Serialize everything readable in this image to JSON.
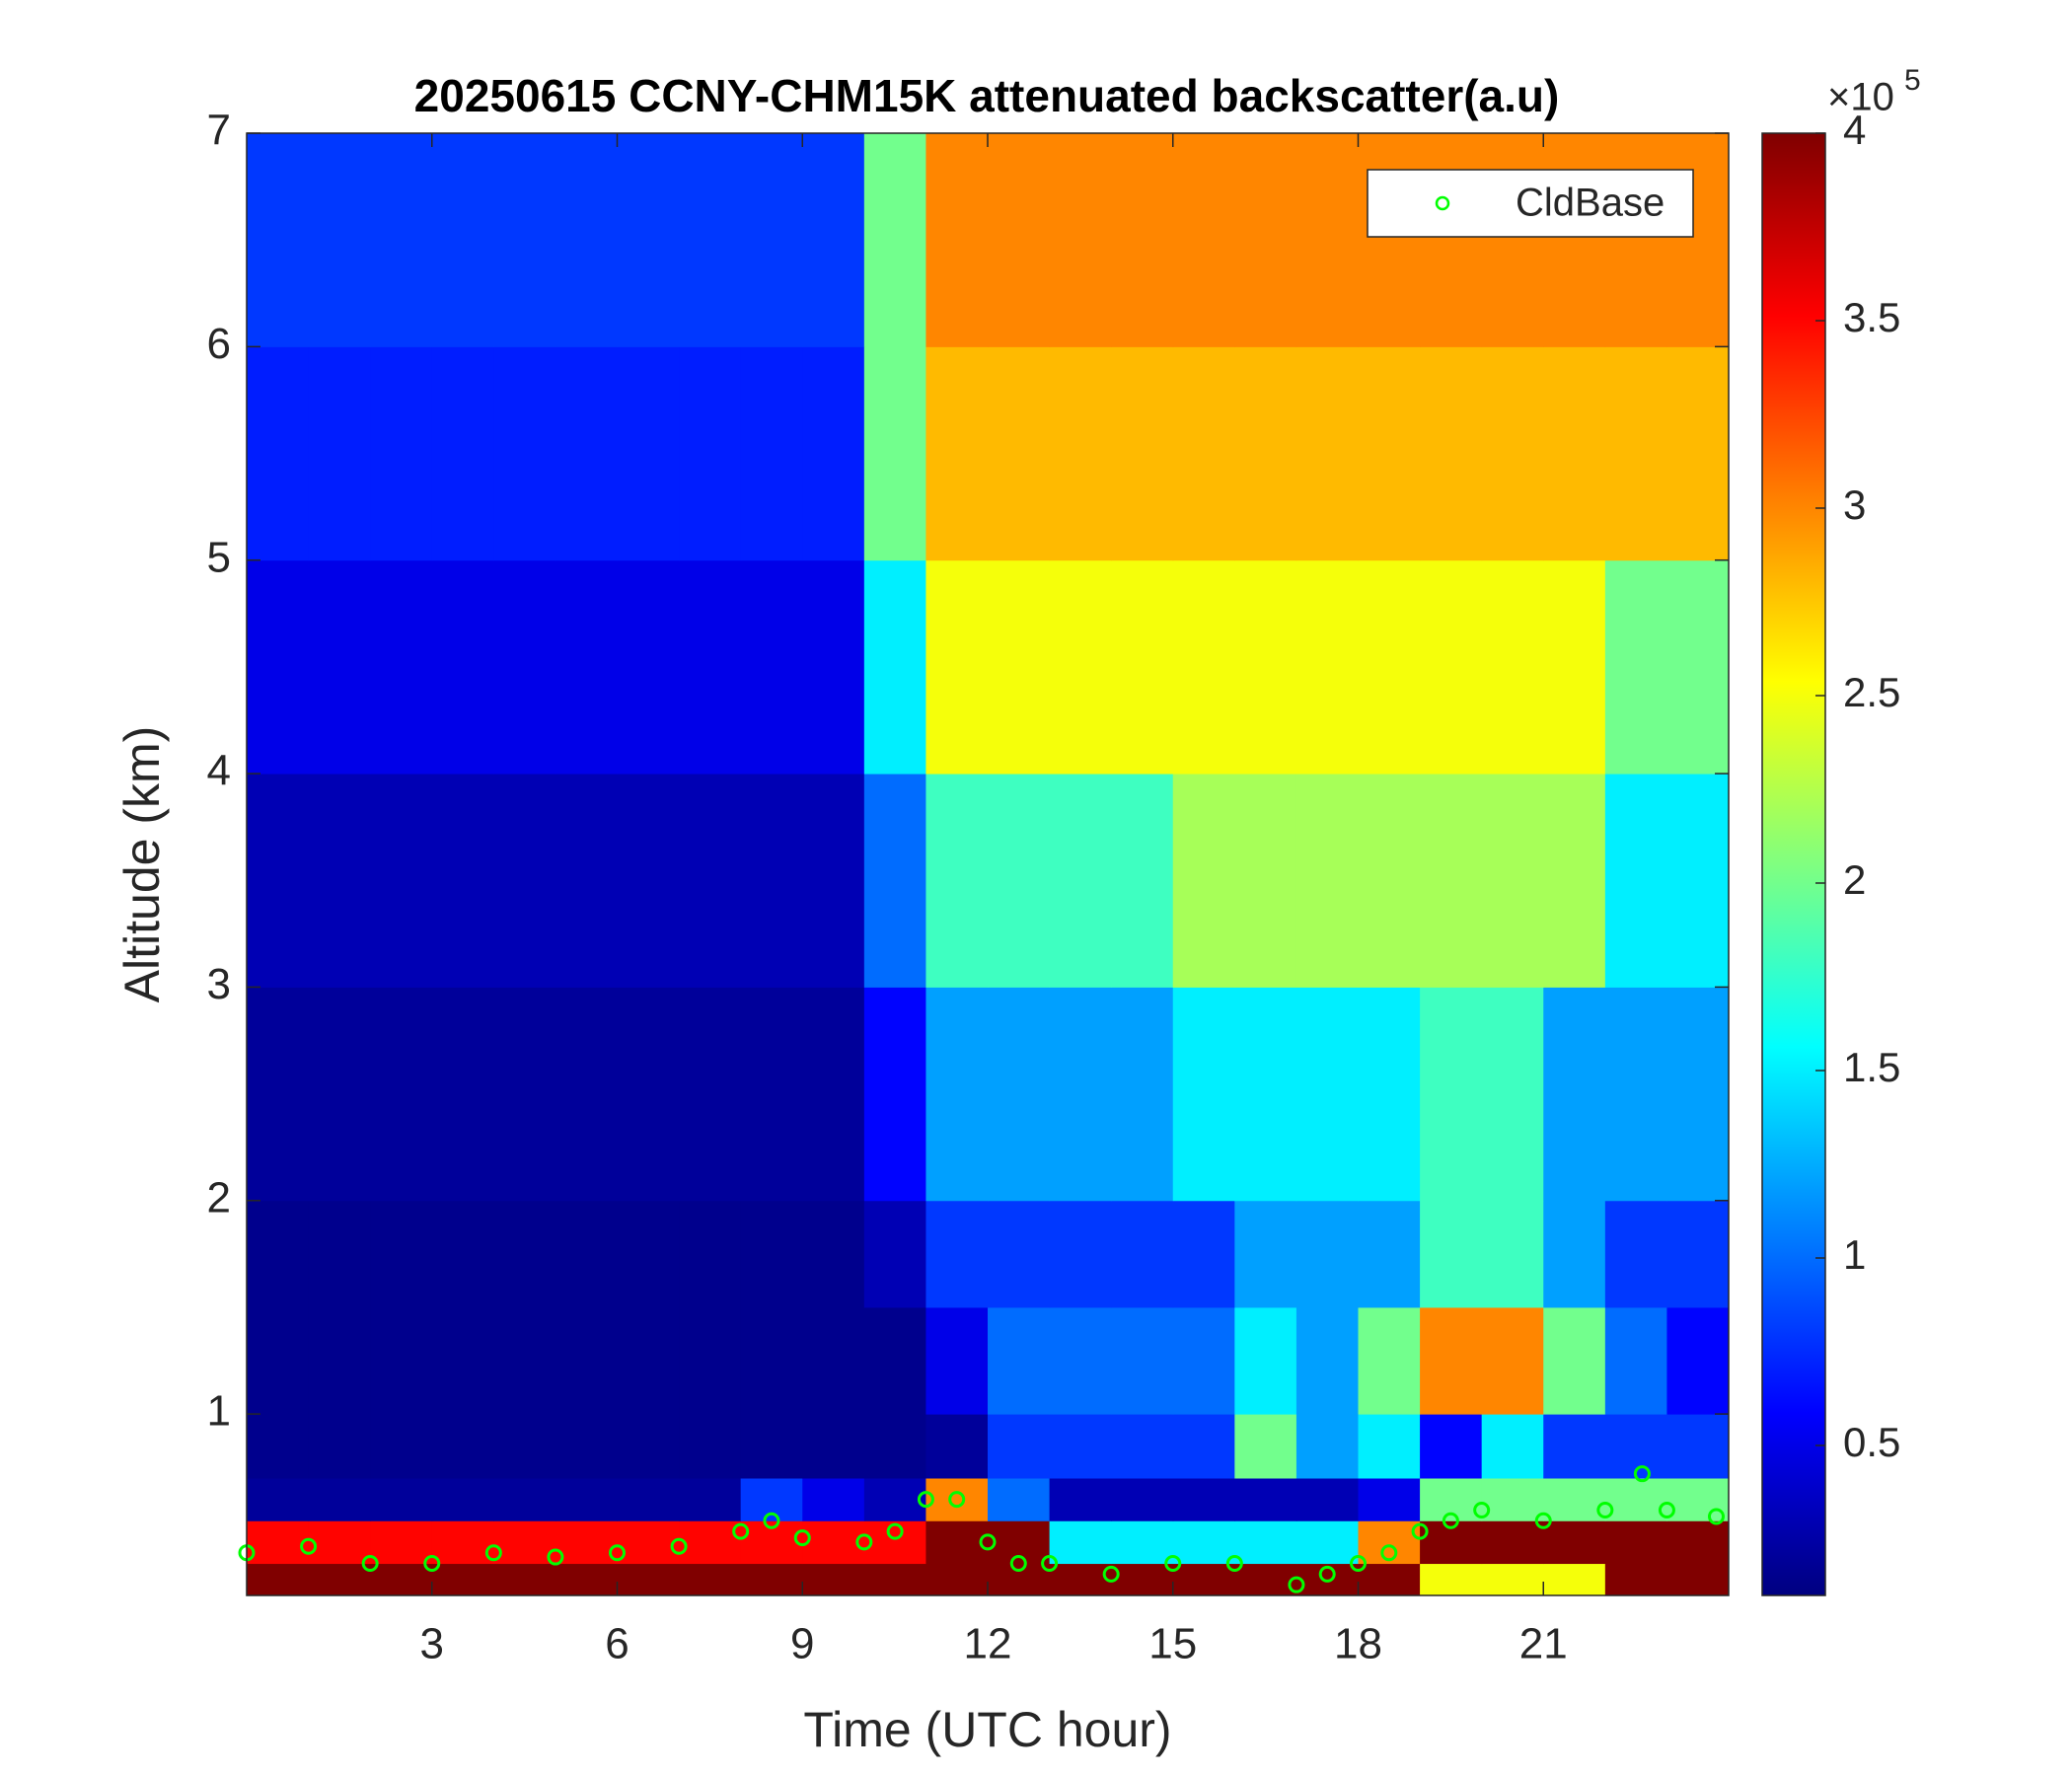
{
  "chart_data": {
    "type": "heatmap",
    "title": "20250615 CCNY-CHM15K attenuated backscatter(a.u)",
    "xlabel": "Time (UTC hour)",
    "ylabel": "Altitude (km)",
    "x_edges": [
      0,
      1,
      2,
      3,
      4,
      5,
      6,
      7,
      8,
      9,
      10,
      11,
      12,
      13,
      14,
      15,
      16,
      17,
      18,
      19,
      20,
      21,
      22,
      23,
      24
    ],
    "y_edges": [
      0.15,
      0.3,
      0.5,
      0.7,
      1.0,
      1.5,
      2,
      3,
      4,
      5,
      6,
      7
    ],
    "z": [
      [
        4,
        4,
        4,
        4,
        4,
        4,
        4,
        4,
        4,
        4,
        4,
        4,
        4,
        4,
        4,
        4,
        4,
        4,
        4,
        2.5,
        2.5,
        2.5,
        4,
        4
      ],
      [
        3.5,
        3.5,
        3.5,
        3.5,
        3.5,
        3.5,
        3.5,
        3.5,
        3.5,
        3.5,
        3.5,
        4,
        4,
        1.5,
        1.5,
        1.5,
        1.5,
        1.5,
        3,
        4,
        4,
        4,
        4,
        4
      ],
      [
        0.2,
        0.2,
        0.2,
        0.2,
        0.2,
        0.2,
        0.2,
        0.2,
        0.8,
        0.5,
        0.3,
        3,
        1,
        0.3,
        0.3,
        0.3,
        0.3,
        0.3,
        0.5,
        2,
        2,
        2,
        2,
        2
      ],
      [
        0.15,
        0.15,
        0.15,
        0.15,
        0.15,
        0.15,
        0.15,
        0.15,
        0.15,
        0.15,
        0.15,
        0.2,
        0.8,
        0.8,
        0.8,
        0.8,
        2,
        1.2,
        1.5,
        0.6,
        1.5,
        0.8,
        0.8,
        0.8
      ],
      [
        0.15,
        0.15,
        0.15,
        0.15,
        0.15,
        0.15,
        0.15,
        0.15,
        0.15,
        0.15,
        0.15,
        0.5,
        1,
        1,
        1,
        1,
        1.5,
        1.2,
        2,
        3,
        3,
        2,
        1,
        0.6
      ],
      [
        0.15,
        0.15,
        0.15,
        0.15,
        0.15,
        0.15,
        0.15,
        0.15,
        0.15,
        0.15,
        0.3,
        0.8,
        0.8,
        0.8,
        0.8,
        0.8,
        1.2,
        1.2,
        1.2,
        1.8,
        1.8,
        1.2,
        0.8,
        0.8
      ],
      [
        0.2,
        0.2,
        0.2,
        0.2,
        0.2,
        0.2,
        0.2,
        0.2,
        0.2,
        0.2,
        0.6,
        1.2,
        1.2,
        1.2,
        1.2,
        1.5,
        1.5,
        1.5,
        1.5,
        1.8,
        1.8,
        1.2,
        1.2,
        1.2
      ],
      [
        0.3,
        0.3,
        0.3,
        0.3,
        0.3,
        0.3,
        0.3,
        0.3,
        0.3,
        0.3,
        1,
        1.8,
        1.8,
        1.8,
        1.8,
        2.2,
        2.2,
        2.2,
        2.2,
        2.2,
        2.2,
        2.2,
        1.5,
        1.5
      ],
      [
        0.5,
        0.5,
        0.5,
        0.5,
        0.5,
        0.5,
        0.5,
        0.5,
        0.5,
        0.5,
        1.5,
        2.5,
        2.5,
        2.5,
        2.5,
        2.5,
        2.5,
        2.5,
        2.5,
        2.5,
        2.5,
        2.5,
        2,
        2
      ],
      [
        0.7,
        0.7,
        0.7,
        0.7,
        0.7,
        0.7,
        0.7,
        0.7,
        0.7,
        0.7,
        2,
        2.8,
        2.8,
        2.8,
        2.8,
        2.8,
        2.8,
        2.8,
        2.8,
        2.8,
        2.8,
        2.8,
        2.8,
        2.8
      ],
      [
        0.8,
        0.8,
        0.8,
        0.8,
        0.8,
        0.8,
        0.8,
        0.8,
        0.8,
        0.8,
        2,
        3,
        3,
        3,
        3,
        3,
        3,
        3,
        3,
        3,
        3,
        3,
        3,
        3
      ]
    ],
    "xlim": [
      0,
      24
    ],
    "ylim": [
      0.15,
      7
    ],
    "xticks": [
      3,
      6,
      9,
      12,
      15,
      18,
      21
    ],
    "yticks": [
      1,
      2,
      3,
      4,
      5,
      6,
      7
    ],
    "colormap": "jet",
    "clim": [
      0.1,
      4
    ],
    "colorbar_ticks": [
      0.5,
      1,
      1.5,
      2,
      2.5,
      3,
      3.5,
      4
    ],
    "colorbar_multiplier": "×10",
    "colorbar_exponent": 5,
    "legend": "upper right",
    "series": [
      {
        "type": "scatter",
        "name": "CldBase",
        "color": "#00ff00",
        "x": [
          0,
          1,
          2,
          3,
          4,
          5,
          6,
          7,
          8,
          8.5,
          9,
          10,
          10.5,
          11,
          11.5,
          12,
          12.5,
          13,
          14,
          15,
          16,
          17,
          17.5,
          18,
          18.5,
          19,
          19.5,
          20,
          21,
          22,
          22.6,
          23,
          23.8
        ],
        "y": [
          0.35,
          0.38,
          0.3,
          0.3,
          0.35,
          0.33,
          0.35,
          0.38,
          0.45,
          0.5,
          0.42,
          0.4,
          0.45,
          0.6,
          0.6,
          0.4,
          0.3,
          0.3,
          0.25,
          0.3,
          0.3,
          0.2,
          0.25,
          0.3,
          0.35,
          0.45,
          0.5,
          0.55,
          0.5,
          0.55,
          0.72,
          0.55,
          0.52
        ]
      }
    ]
  }
}
